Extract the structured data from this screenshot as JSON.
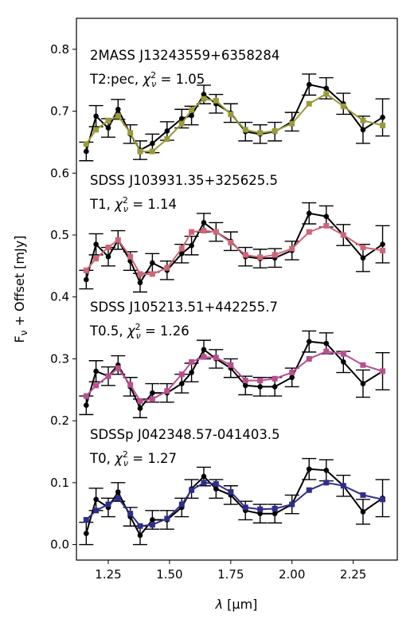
{
  "chart_data": {
    "type": "line",
    "xlabel": "λ [μm]",
    "ylabel": "F_ν + Offset [mJy]",
    "xlim": [
      1.12,
      2.43
    ],
    "ylim": [
      -0.025,
      0.85
    ],
    "xticks": [
      1.25,
      1.5,
      1.75,
      2.0,
      2.25
    ],
    "yticks": [
      0.0,
      0.1,
      0.2,
      0.3,
      0.4,
      0.5,
      0.6,
      0.7,
      0.8
    ],
    "grid": false,
    "x": [
      1.16,
      1.2,
      1.25,
      1.29,
      1.34,
      1.38,
      1.43,
      1.49,
      1.55,
      1.59,
      1.64,
      1.69,
      1.75,
      1.81,
      1.87,
      1.93,
      2.0,
      2.07,
      2.14,
      2.21,
      2.29,
      2.37
    ],
    "spectra": [
      {
        "object": "2MASS J13243559+6358284",
        "spectral_type": "T2:pec",
        "chi2_value": "1.05",
        "data_color": "#000000",
        "model_color": "#9a9a3a",
        "data": [
          0.635,
          0.692,
          0.673,
          0.703,
          0.663,
          0.637,
          0.648,
          0.668,
          0.688,
          0.693,
          0.727,
          0.712,
          0.697,
          0.667,
          0.663,
          0.667,
          0.683,
          0.743,
          0.737,
          0.712,
          0.67,
          0.69
        ],
        "error": [
          0.015,
          0.017,
          0.015,
          0.016,
          0.015,
          0.015,
          0.015,
          0.015,
          0.015,
          0.015,
          0.015,
          0.015,
          0.015,
          0.015,
          0.015,
          0.015,
          0.015,
          0.017,
          0.017,
          0.017,
          0.022,
          0.03
        ],
        "model": [
          0.647,
          0.67,
          0.685,
          0.692,
          0.665,
          0.635,
          0.635,
          0.655,
          0.68,
          0.702,
          0.72,
          0.717,
          0.695,
          0.67,
          0.665,
          0.668,
          0.68,
          0.712,
          0.728,
          0.708,
          0.685,
          0.677
        ]
      },
      {
        "object": "SDSS J103931.35+325625.5",
        "spectral_type": "T1",
        "chi2_value": "1.14",
        "data_color": "#000000",
        "model_color": "#cd6678",
        "data": [
          0.428,
          0.485,
          0.465,
          0.492,
          0.458,
          0.423,
          0.455,
          0.443,
          0.47,
          0.483,
          0.52,
          0.505,
          0.49,
          0.465,
          0.462,
          0.463,
          0.475,
          0.535,
          0.53,
          0.5,
          0.463,
          0.485
        ],
        "error": [
          0.015,
          0.017,
          0.015,
          0.015,
          0.015,
          0.015,
          0.015,
          0.015,
          0.015,
          0.015,
          0.015,
          0.015,
          0.015,
          0.015,
          0.015,
          0.015,
          0.015,
          0.017,
          0.017,
          0.017,
          0.022,
          0.03
        ],
        "model": [
          0.443,
          0.462,
          0.48,
          0.492,
          0.465,
          0.437,
          0.437,
          0.447,
          0.478,
          0.505,
          0.507,
          0.505,
          0.488,
          0.468,
          0.464,
          0.468,
          0.478,
          0.505,
          0.515,
          0.5,
          0.48,
          0.475
        ]
      },
      {
        "object": "SDSS J105213.51+442255.7",
        "spectral_type": "T0.5",
        "chi2_value": "1.26",
        "data_color": "#000000",
        "model_color": "#b84f8f",
        "data": [
          0.225,
          0.28,
          0.272,
          0.29,
          0.255,
          0.22,
          0.245,
          0.245,
          0.26,
          0.278,
          0.315,
          0.3,
          0.285,
          0.257,
          0.255,
          0.255,
          0.27,
          0.328,
          0.325,
          0.295,
          0.26,
          0.28
        ],
        "error": [
          0.015,
          0.017,
          0.015,
          0.015,
          0.015,
          0.015,
          0.015,
          0.015,
          0.015,
          0.015,
          0.015,
          0.015,
          0.015,
          0.015,
          0.015,
          0.015,
          0.015,
          0.017,
          0.017,
          0.017,
          0.022,
          0.03
        ],
        "model": [
          0.24,
          0.257,
          0.272,
          0.285,
          0.258,
          0.232,
          0.235,
          0.248,
          0.275,
          0.295,
          0.303,
          0.302,
          0.29,
          0.265,
          0.265,
          0.268,
          0.278,
          0.3,
          0.312,
          0.308,
          0.29,
          0.28
        ]
      },
      {
        "object": "SDSSp J042348.57-041403.5",
        "spectral_type": "T0",
        "chi2_value": "1.27",
        "data_color": "#000000",
        "model_color": "#2e2e8a",
        "data": [
          0.018,
          0.073,
          0.06,
          0.085,
          0.045,
          0.015,
          0.04,
          0.04,
          0.06,
          0.09,
          0.11,
          0.09,
          0.08,
          0.055,
          0.05,
          0.05,
          0.065,
          0.122,
          0.12,
          0.095,
          0.053,
          0.075
        ],
        "error": [
          0.018,
          0.018,
          0.015,
          0.015,
          0.015,
          0.015,
          0.015,
          0.015,
          0.015,
          0.015,
          0.015,
          0.015,
          0.015,
          0.015,
          0.015,
          0.015,
          0.015,
          0.017,
          0.017,
          0.017,
          0.02,
          0.03
        ],
        "model": [
          0.04,
          0.055,
          0.065,
          0.075,
          0.05,
          0.03,
          0.032,
          0.042,
          0.065,
          0.088,
          0.1,
          0.098,
          0.085,
          0.06,
          0.057,
          0.058,
          0.065,
          0.088,
          0.1,
          0.095,
          0.08,
          0.073
        ]
      }
    ]
  }
}
